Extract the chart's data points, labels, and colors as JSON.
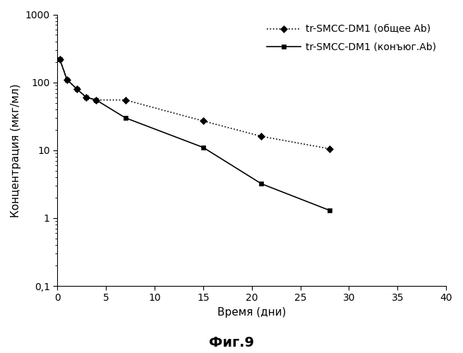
{
  "series1_label": "tr-SMCC-DM1 (общее Ab)",
  "series1_x": [
    0.25,
    1,
    2,
    3,
    4,
    7,
    15,
    21,
    28
  ],
  "series1_y": [
    220,
    110,
    80,
    60,
    55,
    55,
    27,
    16,
    10.5
  ],
  "series1_color": "#000000",
  "series1_linestyle": "dotted",
  "series1_marker": "D",
  "series1_markersize": 5,
  "series2_label": "tr-SMCC-DM1 (конъюг.Ab)",
  "series2_x": [
    0.25,
    1,
    2,
    3,
    4,
    7,
    15,
    21,
    28
  ],
  "series2_y": [
    220,
    110,
    80,
    60,
    55,
    30,
    11,
    3.2,
    1.3
  ],
  "series2_color": "#000000",
  "series2_linestyle": "solid",
  "series2_marker": "s",
  "series2_markersize": 5,
  "xlabel": "Время (дни)",
  "ylabel": "Концентрация (мкг/мл)",
  "xlim": [
    0,
    40
  ],
  "ylim": [
    0.1,
    1000
  ],
  "xticks": [
    0,
    5,
    10,
    15,
    20,
    25,
    30,
    35,
    40
  ],
  "ytick_labels": {
    "0.1": "0,1",
    "1": "1",
    "10": "10",
    "100": "100",
    "1000": "1000"
  },
  "figure_title": "Фиг.9",
  "background_color": "#ffffff",
  "title_fontsize": 14,
  "label_fontsize": 11,
  "tick_fontsize": 10,
  "legend_fontsize": 10
}
